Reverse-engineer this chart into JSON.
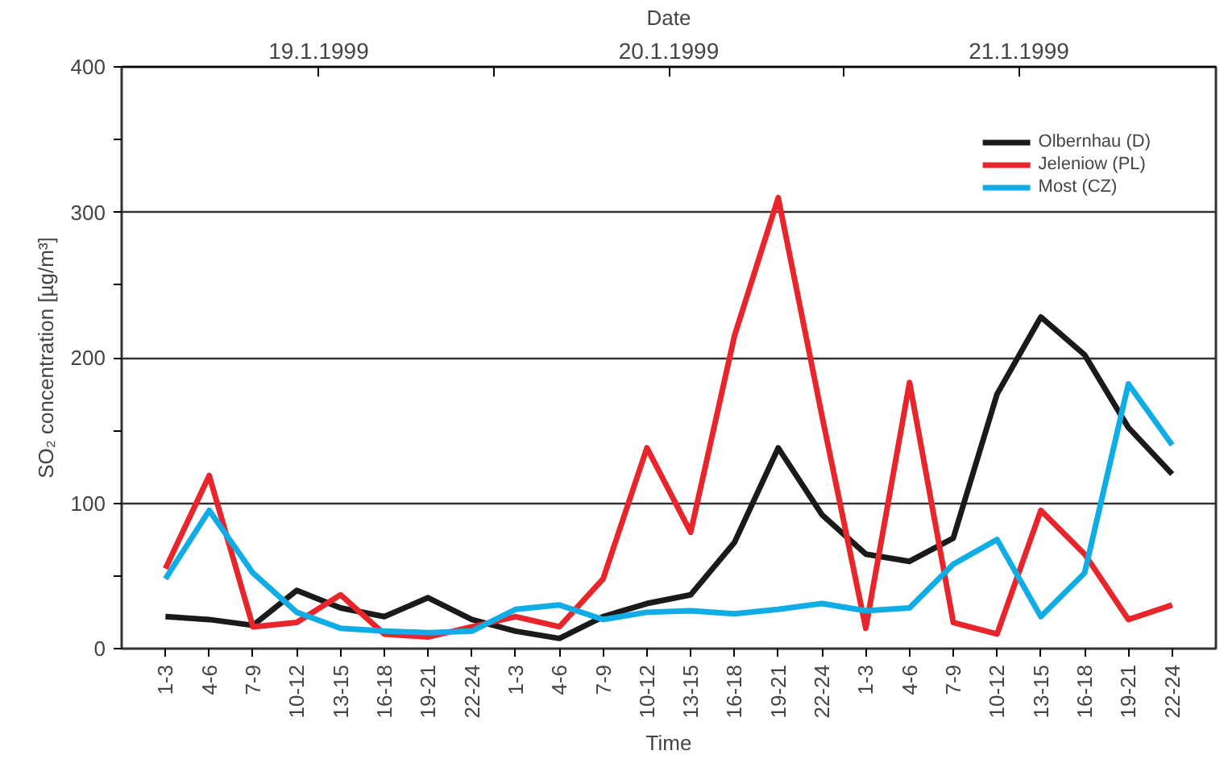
{
  "chart_data": {
    "type": "line",
    "xlabel": "Time",
    "ylabel": "SO₂ concentration [µg/m³]",
    "x2label": "Date",
    "categories": [
      "1-3",
      "4-6",
      "7-9",
      "10-12",
      "13-15",
      "16-18",
      "19-21",
      "22-24",
      "1-3",
      "4-6",
      "7-9",
      "10-12",
      "13-15",
      "16-18",
      "19-21",
      "22-24",
      "1-3",
      "4-6",
      "7-9",
      "10-12",
      "13-15",
      "16-18",
      "19-21",
      "22-24"
    ],
    "series": [
      {
        "name": "Olbernhau (D)",
        "color": "#1a1a1a",
        "values": [
          22,
          20,
          16,
          40,
          28,
          22,
          35,
          20,
          12,
          7,
          22,
          31,
          37,
          73,
          138,
          92,
          65,
          60,
          76,
          175,
          228,
          202,
          152,
          120
        ]
      },
      {
        "name": "Jeleniow (PL)",
        "color": "#e8252b",
        "values": [
          55,
          119,
          15,
          18,
          37,
          10,
          8,
          15,
          22,
          15,
          48,
          138,
          80,
          215,
          310,
          160,
          14,
          183,
          18,
          10,
          95,
          65,
          20,
          30
        ]
      },
      {
        "name": "Most (CZ)",
        "color": "#10ace6",
        "values": [
          48,
          95,
          52,
          25,
          14,
          12,
          11,
          12,
          27,
          30,
          20,
          25,
          26,
          24,
          27,
          31,
          26,
          28,
          58,
          75,
          22,
          52,
          182,
          140
        ]
      }
    ],
    "ylim": [
      0,
      400
    ],
    "yticks": [
      0,
      {
        "value": 50,
        "label": null
      },
      100,
      {
        "value": 150,
        "label": null
      },
      200,
      {
        "value": 250,
        "label": null
      },
      300,
      {
        "value": 350,
        "label": null
      },
      400
    ],
    "annotations": [
      "19.1.1999",
      "20.1.1999",
      "21.1.1999"
    ],
    "grid": "y",
    "legend": "top right",
    "marker": "none",
    "line_style": "solid"
  }
}
